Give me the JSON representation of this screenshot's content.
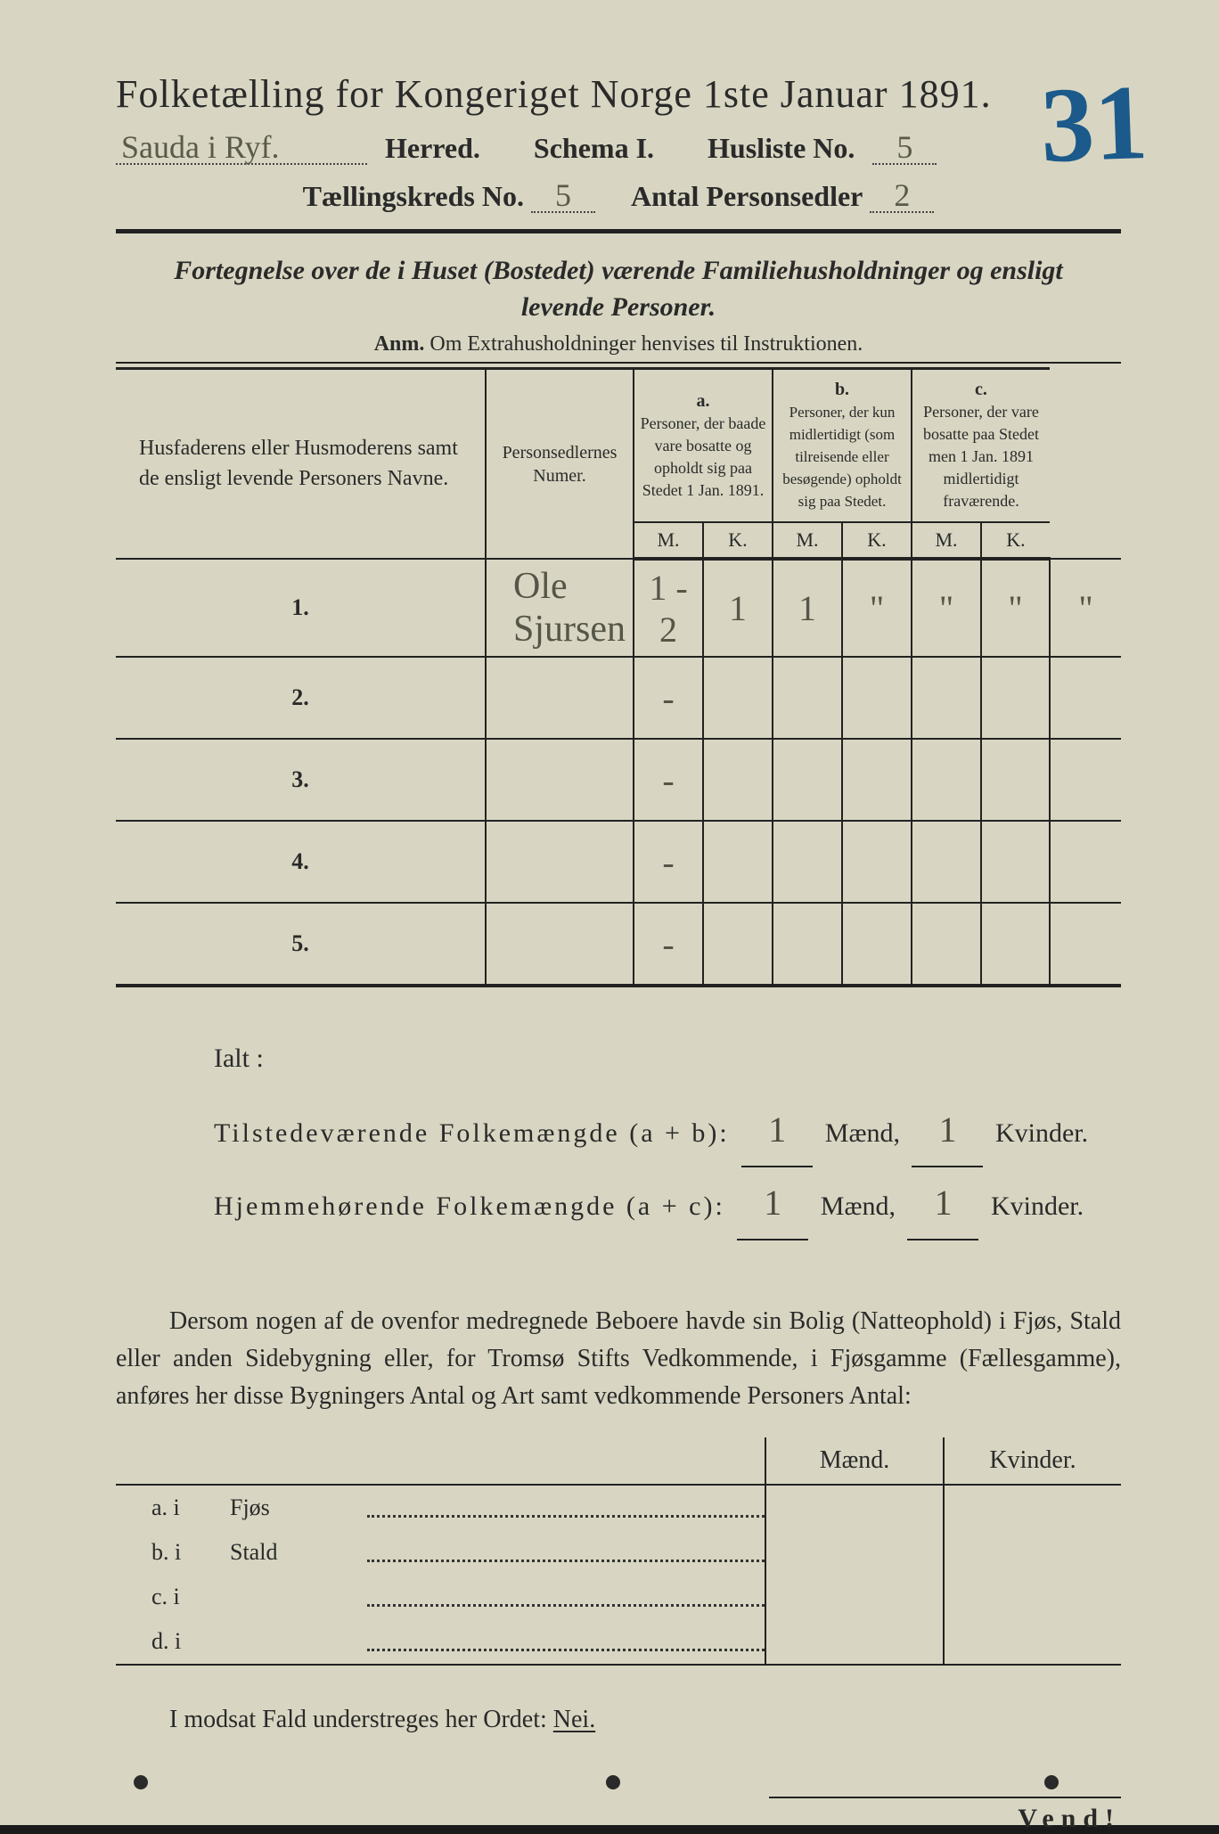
{
  "page_number_stamp": "31",
  "title": "Folketælling for Kongeriget Norge 1ste Januar 1891.",
  "header": {
    "herred_script": "Sauda i Ryf.",
    "herred_label": "Herred.",
    "schema_label": "Schema I.",
    "husliste_label": "Husliste No.",
    "husliste_no": "5",
    "tellingskreds_label": "Tællingskreds No.",
    "tellingskreds_no": "5",
    "antal_label": "Antal Personsedler",
    "antal_value": "2"
  },
  "subtitle_italic": "Fortegnelse over de i Huset (Bostedet) værende Familiehusholdninger og ensligt levende Personer.",
  "anm_prefix": "Anm.",
  "anm_text": "Om Extrahusholdninger henvises til Instruktionen.",
  "table": {
    "col_names": "Husfaderens eller Husmoderens samt de ensligt levende Personers Navne.",
    "col_numer": "Personsedlernes Numer.",
    "col_a_head": "a.",
    "col_a": "Personer, der baade vare bosatte og opholdt sig paa Stedet 1 Jan. 1891.",
    "col_b_head": "b.",
    "col_b": "Personer, der kun midlertidigt (som tilreisende eller besøgende) opholdt sig paa Stedet.",
    "col_c_head": "c.",
    "col_c": "Personer, der vare bosatte paa Stedet men 1 Jan. 1891 midlertidigt fraværende.",
    "M": "M.",
    "K": "K.",
    "rows": [
      {
        "n": "1.",
        "name": "Ole Sjursen",
        "numer": "1 - 2",
        "aM": "1",
        "aK": "1",
        "bM": "\"",
        "bK": "\"",
        "cM": "\"",
        "cK": "\""
      },
      {
        "n": "2.",
        "name": "",
        "numer": "-",
        "aM": "",
        "aK": "",
        "bM": "",
        "bK": "",
        "cM": "",
        "cK": ""
      },
      {
        "n": "3.",
        "name": "",
        "numer": "-",
        "aM": "",
        "aK": "",
        "bM": "",
        "bK": "",
        "cM": "",
        "cK": ""
      },
      {
        "n": "4.",
        "name": "",
        "numer": "-",
        "aM": "",
        "aK": "",
        "bM": "",
        "bK": "",
        "cM": "",
        "cK": ""
      },
      {
        "n": "5.",
        "name": "",
        "numer": "-",
        "aM": "",
        "aK": "",
        "bM": "",
        "bK": "",
        "cM": "",
        "cK": ""
      }
    ]
  },
  "totals": {
    "ialt": "Ialt :",
    "tilstede": "Tilstedeværende Folkemængde (a + b):",
    "hjemme": "Hjemmehørende Folkemængde (a + c):",
    "maend": "Mænd,",
    "kvinder": "Kvinder.",
    "tM": "1",
    "tK": "1",
    "hM": "1",
    "hK": "1"
  },
  "para": "Dersom nogen af de ovenfor medregnede Beboere havde sin Bolig (Natteophold) i Fjøs, Stald eller anden Sidebygning eller, for Tromsø Stifts Vedkommende, i Fjøsgamme (Fællesgamme), anføres her disse Bygningers Antal og Art samt vedkommende Personers Antal:",
  "lower": {
    "maend": "Mænd.",
    "kvinder": "Kvinder.",
    "rows": [
      {
        "lead": "a.  i",
        "label": "Fjøs"
      },
      {
        "lead": "b.  i",
        "label": "Stald"
      },
      {
        "lead": "c.  i",
        "label": ""
      },
      {
        "lead": "d.  i",
        "label": ""
      }
    ]
  },
  "nei_line_pre": "I modsat Fald understreges her Ordet:",
  "nei": "Nei.",
  "vend": "Vend!",
  "colors": {
    "paper": "#d8d6c2",
    "ink": "#2a2a2a",
    "script": "#5a5a4a",
    "stamp": "#1b5a8a"
  }
}
